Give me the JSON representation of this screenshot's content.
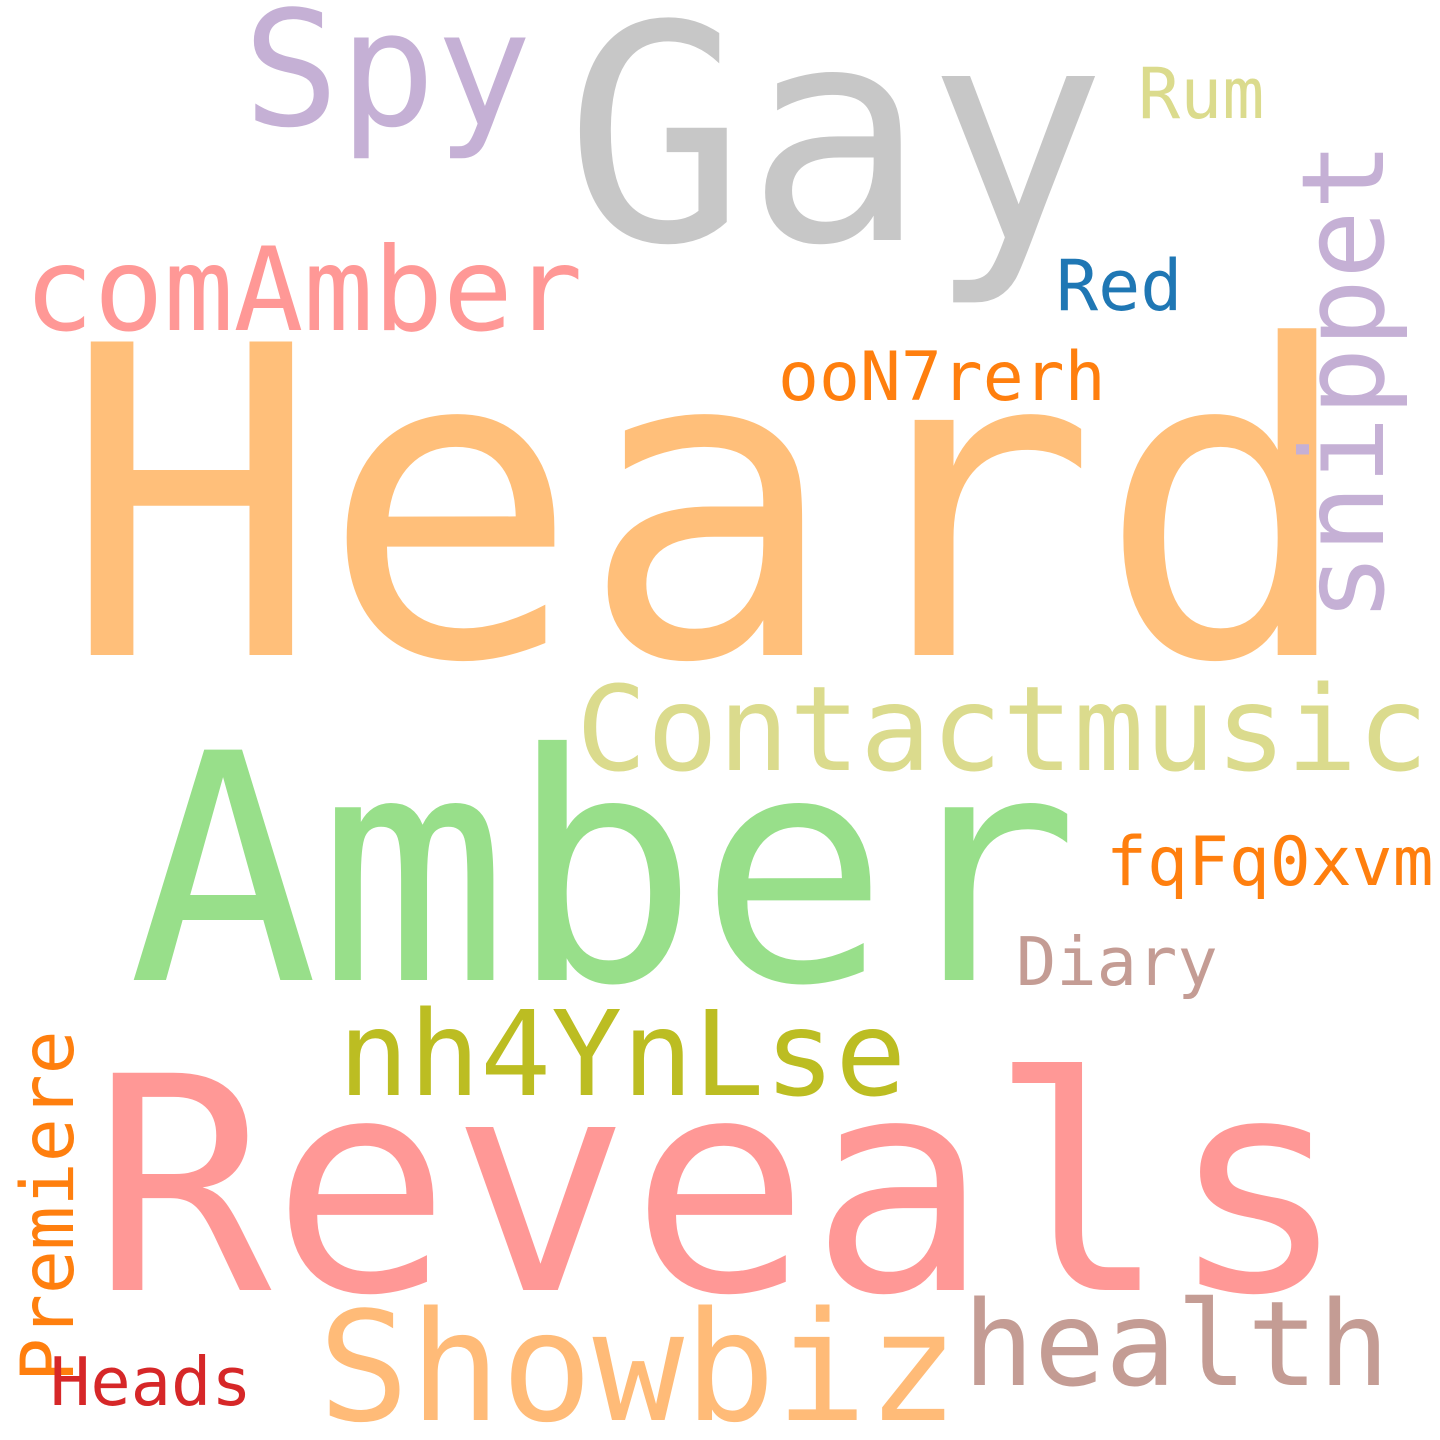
{
  "words": [
    {
      "text": "Heard",
      "color": "#ffbf7a"
    },
    {
      "text": "Reveals",
      "color": "#ff9896"
    },
    {
      "text": "Amber",
      "color": "#98df8a"
    },
    {
      "text": "Gay",
      "color": "#c7c7c7"
    },
    {
      "text": "Spy",
      "color": "#c5b0d5"
    },
    {
      "text": "Showbiz",
      "color": "#ffbb78"
    },
    {
      "text": "Contactmusic",
      "color": "#dbdb8d"
    },
    {
      "text": "comAmber",
      "color": "#ff9896"
    },
    {
      "text": "snippet",
      "color": "#c5b0d5"
    },
    {
      "text": "nh4YnLse",
      "color": "#bcbd22"
    },
    {
      "text": "health",
      "color": "#c49c94"
    },
    {
      "text": "ooN7rerh",
      "color": "#ff7f0e"
    },
    {
      "text": "fqFq0xvm",
      "color": "#ff7f0e"
    },
    {
      "text": "Premiere",
      "color": "#ff7f0e"
    },
    {
      "text": "Diary",
      "color": "#c49c94"
    },
    {
      "text": "Red",
      "color": "#1f77b4"
    },
    {
      "text": "Rum",
      "color": "#dbdb8d"
    },
    {
      "text": "Heads",
      "color": "#d62728"
    }
  ]
}
